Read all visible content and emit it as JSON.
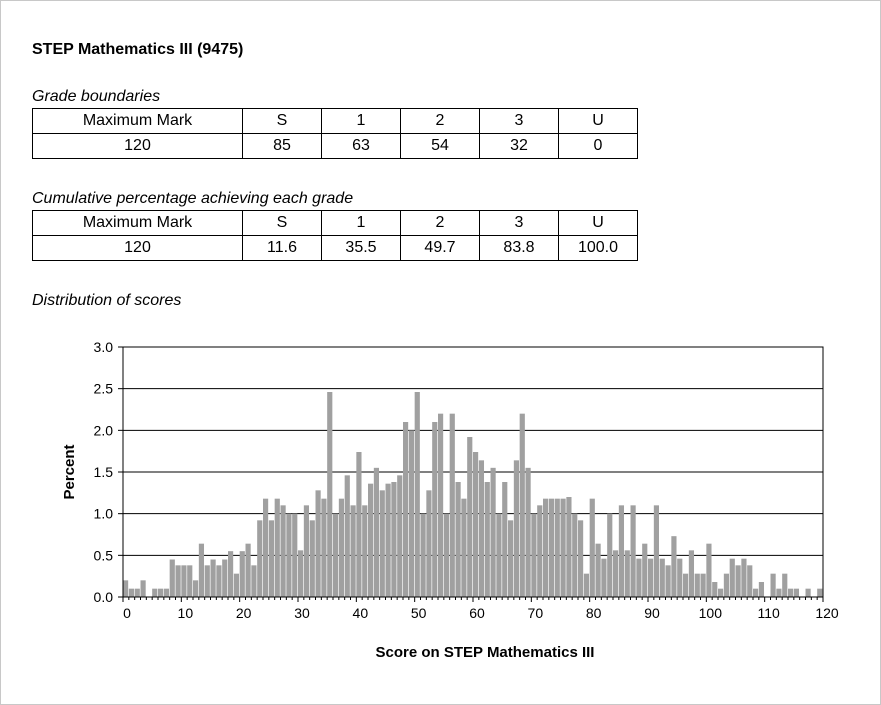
{
  "document": {
    "title": "STEP Mathematics III (9475)"
  },
  "grade_boundaries": {
    "heading": "Grade boundaries",
    "headers": [
      "Maximum Mark",
      "S",
      "1",
      "2",
      "3",
      "U"
    ],
    "values": [
      "120",
      "85",
      "63",
      "54",
      "32",
      "0"
    ]
  },
  "cumulative": {
    "heading": "Cumulative percentage achieving each grade",
    "headers": [
      "Maximum Mark",
      "S",
      "1",
      "2",
      "3",
      "U"
    ],
    "values": [
      "120",
      "11.6",
      "35.5",
      "49.7",
      "83.8",
      "100.0"
    ]
  },
  "distribution": {
    "heading": "Distribution of scores"
  },
  "chart_data": {
    "type": "bar",
    "title": "",
    "xlabel": "Score on STEP Mathematics III",
    "ylabel": "Percent",
    "xlim": [
      0,
      120
    ],
    "ylim": [
      0,
      3.0
    ],
    "x_ticks": [
      0,
      10,
      20,
      30,
      40,
      50,
      60,
      70,
      80,
      90,
      100,
      110,
      120
    ],
    "y_ticks": [
      "0.0",
      "0.5",
      "1.0",
      "1.5",
      "2.0",
      "2.5",
      "3.0"
    ],
    "grid": "horizontal",
    "bar_color": "#a0a0a0",
    "x": [
      0,
      1,
      2,
      3,
      4,
      5,
      6,
      7,
      8,
      9,
      10,
      11,
      12,
      13,
      14,
      15,
      16,
      17,
      18,
      19,
      20,
      21,
      22,
      23,
      24,
      25,
      26,
      27,
      28,
      29,
      30,
      31,
      32,
      33,
      34,
      35,
      36,
      37,
      38,
      39,
      40,
      41,
      42,
      43,
      44,
      45,
      46,
      47,
      48,
      49,
      50,
      51,
      52,
      53,
      54,
      55,
      56,
      57,
      58,
      59,
      60,
      61,
      62,
      63,
      64,
      65,
      66,
      67,
      68,
      69,
      70,
      71,
      72,
      73,
      74,
      75,
      76,
      77,
      78,
      79,
      80,
      81,
      82,
      83,
      84,
      85,
      86,
      87,
      88,
      89,
      90,
      91,
      92,
      93,
      94,
      95,
      96,
      97,
      98,
      99,
      100,
      101,
      102,
      103,
      104,
      105,
      106,
      107,
      108,
      109,
      110,
      111,
      112,
      113,
      114,
      115,
      116,
      117,
      118,
      119,
      120
    ],
    "values": [
      0.2,
      0.1,
      0.1,
      0.2,
      0.0,
      0.1,
      0.1,
      0.1,
      0.45,
      0.38,
      0.38,
      0.38,
      0.2,
      0.64,
      0.38,
      0.45,
      0.38,
      0.45,
      0.55,
      0.28,
      0.55,
      0.64,
      0.38,
      0.92,
      1.18,
      0.92,
      1.18,
      1.1,
      1.0,
      1.0,
      0.56,
      1.1,
      0.92,
      1.28,
      1.18,
      2.46,
      1.0,
      1.18,
      1.46,
      1.1,
      1.74,
      1.1,
      1.36,
      1.55,
      1.28,
      1.36,
      1.38,
      1.46,
      2.1,
      2.0,
      2.46,
      1.0,
      1.28,
      2.1,
      2.2,
      1.0,
      2.2,
      1.38,
      1.18,
      1.92,
      1.74,
      1.64,
      1.38,
      1.55,
      1.0,
      1.38,
      0.92,
      1.64,
      2.2,
      1.55,
      1.0,
      1.1,
      1.18,
      1.18,
      1.18,
      1.18,
      1.2,
      1.0,
      0.92,
      0.28,
      1.18,
      0.64,
      0.46,
      1.0,
      0.56,
      1.1,
      0.56,
      1.1,
      0.46,
      0.64,
      0.46,
      1.1,
      0.46,
      0.38,
      0.73,
      0.46,
      0.28,
      0.56,
      0.28,
      0.28,
      0.64,
      0.18,
      0.1,
      0.28,
      0.46,
      0.38,
      0.46,
      0.38,
      0.1,
      0.18,
      0.0,
      0.28,
      0.1,
      0.28,
      0.1,
      0.1,
      0.0,
      0.1,
      0.0,
      0.1,
      0.0
    ]
  }
}
